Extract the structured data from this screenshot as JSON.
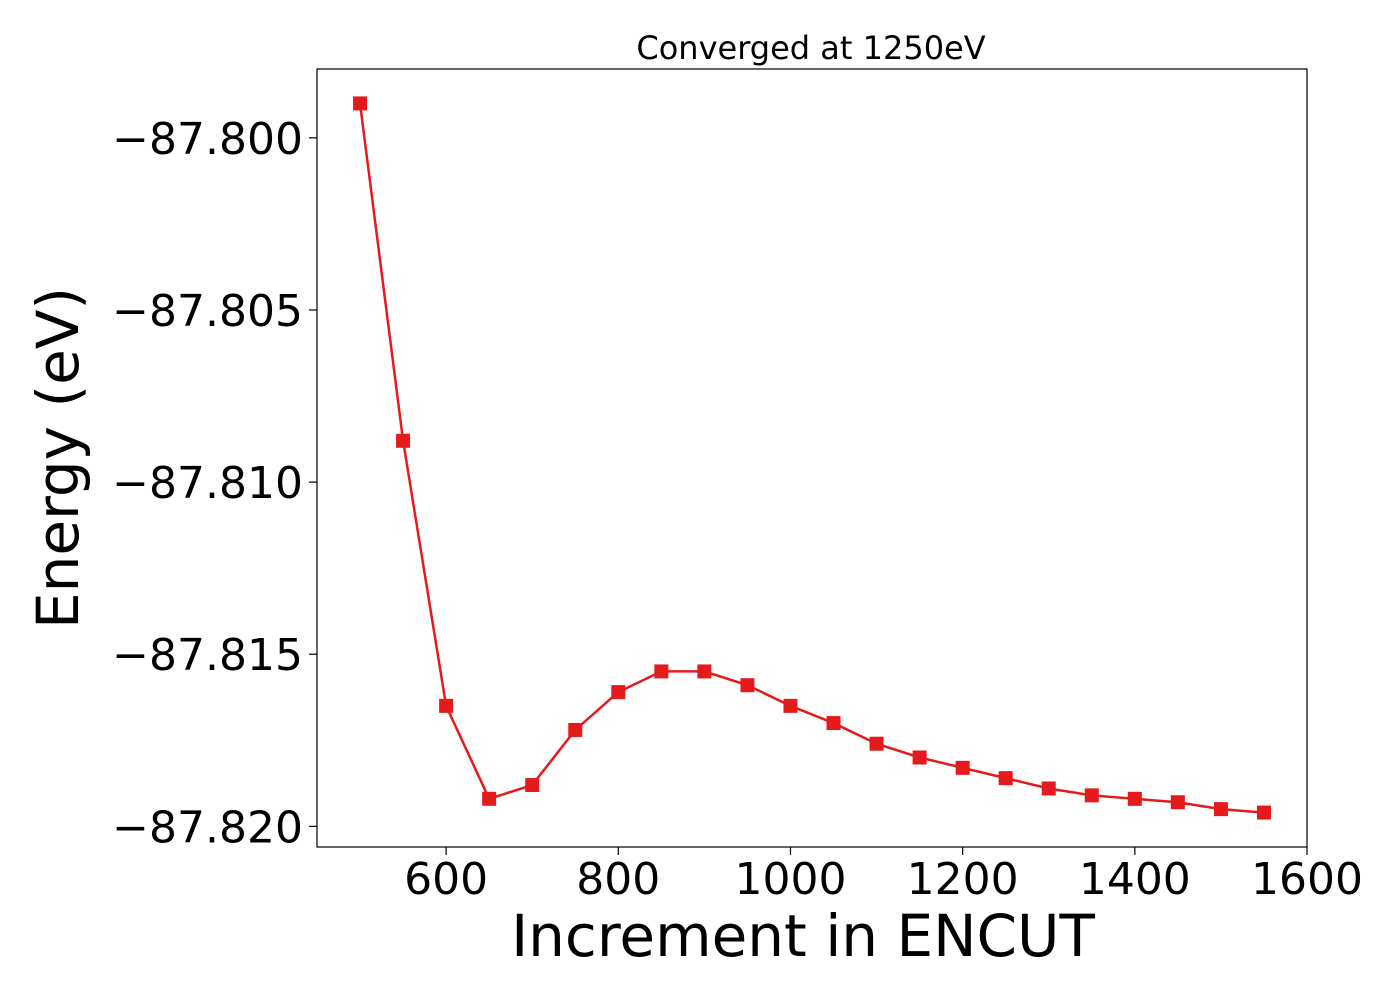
{
  "chart_data": {
    "type": "line",
    "title": "Converged at 1250eV",
    "xlabel": "Increment in ENCUT",
    "ylabel": "Energy (eV)",
    "xlim": [
      450,
      1600
    ],
    "ylim": [
      -87.8206,
      -87.798
    ],
    "x_ticks": [
      600,
      800,
      1000,
      1200,
      1400,
      1600
    ],
    "x_tick_labels": [
      "600",
      "800",
      "1000",
      "1200",
      "1400",
      "1600"
    ],
    "y_ticks": [
      -87.8,
      -87.805,
      -87.81,
      -87.815,
      -87.82
    ],
    "y_tick_labels": [
      "−87.800",
      "−87.805",
      "−87.810",
      "−87.815",
      "−87.820"
    ],
    "grid": false,
    "legend": "none",
    "series": [
      {
        "color": "#e41a1c",
        "marker": "square",
        "x": [
          500,
          550,
          600,
          650,
          700,
          750,
          800,
          850,
          900,
          950,
          1000,
          1050,
          1100,
          1150,
          1200,
          1250,
          1300,
          1350,
          1400,
          1450,
          1500,
          1550
        ],
        "y": [
          -87.799,
          -87.8088,
          -87.8165,
          -87.8192,
          -87.8188,
          -87.8172,
          -87.8161,
          -87.8155,
          -87.8155,
          -87.8159,
          -87.8165,
          -87.817,
          -87.8176,
          -87.818,
          -87.8183,
          -87.8186,
          -87.8189,
          -87.8191,
          -87.8192,
          -87.8193,
          -87.8195,
          -87.8196
        ]
      }
    ]
  }
}
